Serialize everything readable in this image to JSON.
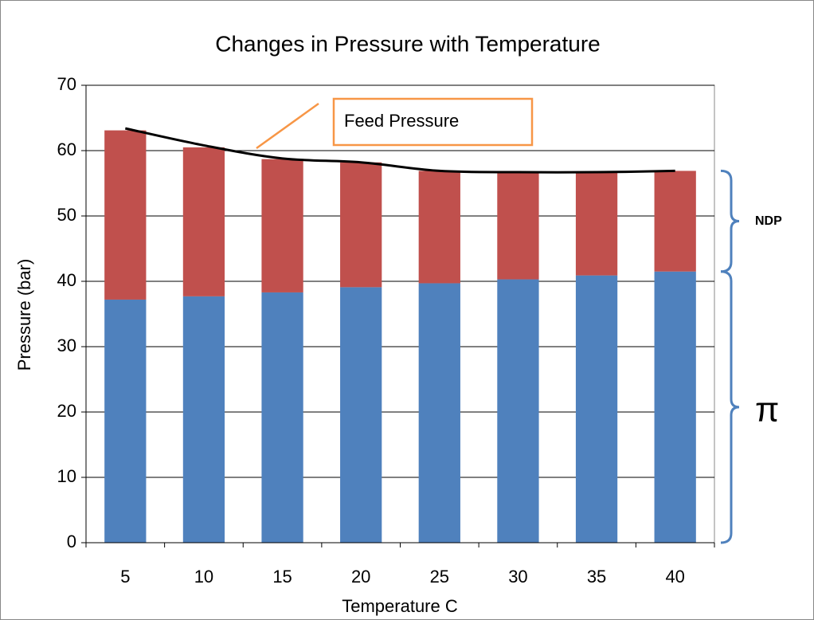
{
  "chart_data": {
    "type": "stacked-bar-line",
    "title": "Changes in Pressure with Temperature",
    "x_label": "Temperature C",
    "y_label": "Pressure (bar)",
    "categories": [
      5,
      10,
      15,
      20,
      25,
      30,
      35,
      40
    ],
    "series": [
      {
        "name": "π",
        "color": "#4f81bd",
        "type": "bar",
        "values": [
          37.2,
          37.7,
          38.3,
          39.1,
          39.7,
          40.3,
          40.9,
          41.5
        ]
      },
      {
        "name": "NDP",
        "color": "#c0504d",
        "type": "bar",
        "values": [
          25.9,
          22.8,
          20.4,
          19.1,
          17.2,
          16.4,
          15.8,
          15.4
        ]
      },
      {
        "name": "Feed Pressure",
        "color": "#000000",
        "type": "line",
        "values": [
          63.4,
          60.8,
          58.8,
          58.2,
          56.9,
          56.7,
          56.7,
          56.9
        ]
      }
    ],
    "ylim": [
      0,
      70
    ],
    "yticks": [
      0,
      10,
      20,
      30,
      40,
      50,
      60,
      70
    ],
    "grid": true,
    "annotation_color": "#f79646",
    "brace_color": "#4f81bd"
  }
}
